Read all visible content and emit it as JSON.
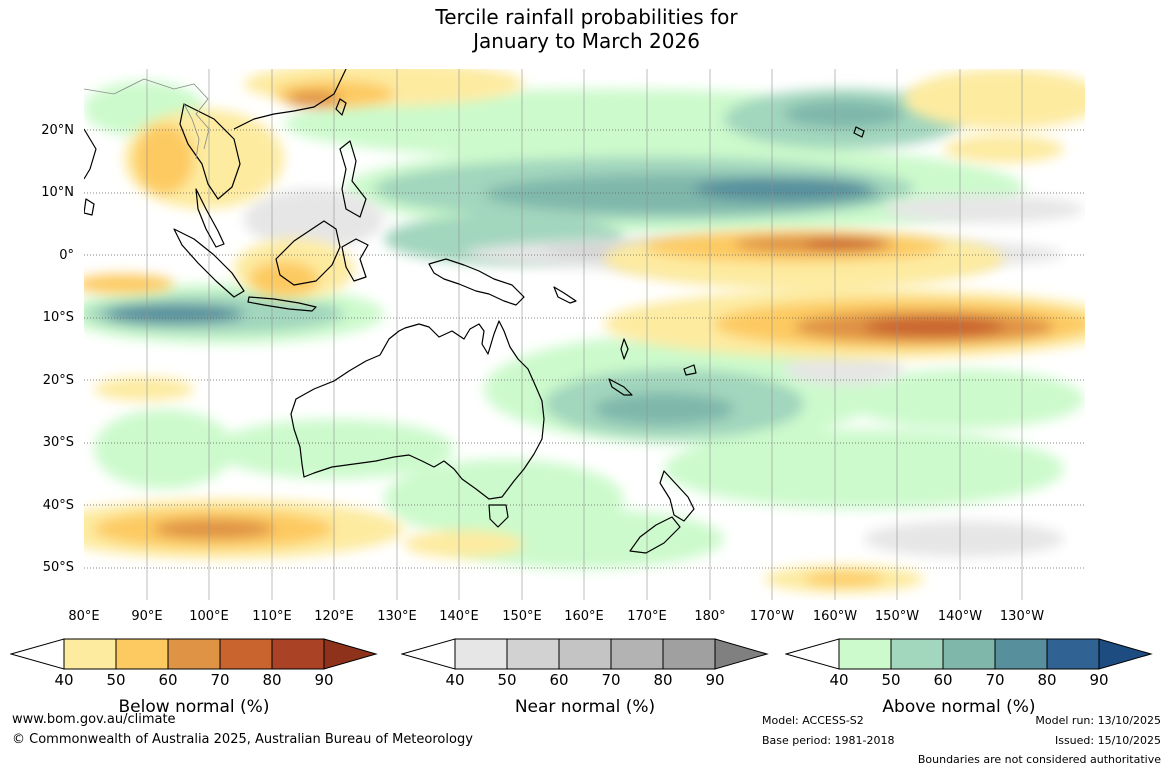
{
  "title": {
    "line1": "Tercile rainfall probabilities for",
    "line2": "January to March 2026"
  },
  "axes": {
    "lat_labels": [
      "20°N",
      "10°N",
      "0°",
      "10°S",
      "20°S",
      "30°S",
      "40°S",
      "50°S"
    ],
    "lon_labels": [
      "80°E",
      "90°E",
      "100°E",
      "110°E",
      "120°E",
      "130°E",
      "140°E",
      "150°E",
      "160°E",
      "170°E",
      "180°",
      "170°W",
      "160°W",
      "150°W",
      "140°W",
      "130°W"
    ]
  },
  "legends": [
    {
      "title": "Below normal (%)",
      "ticks": [
        "40",
        "50",
        "60",
        "70",
        "80",
        "90"
      ],
      "colors": [
        "#ffffff",
        "#fdeba0",
        "#fdca62",
        "#df9345",
        "#c9642f",
        "#aa4325",
        "#8f321c"
      ]
    },
    {
      "title": "Near normal (%)",
      "ticks": [
        "40",
        "50",
        "60",
        "70",
        "80",
        "90"
      ],
      "colors": [
        "#ffffff",
        "#e6e6e6",
        "#d2d2d2",
        "#c4c4c4",
        "#b3b3b3",
        "#a0a0a0",
        "#808080"
      ]
    },
    {
      "title": "Above normal (%)",
      "ticks": [
        "40",
        "50",
        "60",
        "70",
        "80",
        "90"
      ],
      "colors": [
        "#ffffff",
        "#ccfacc",
        "#a2d6bd",
        "#7fb7ab",
        "#578f9d",
        "#306293",
        "#1d4c80"
      ]
    }
  ],
  "footer": {
    "website": "www.bom.gov.au/climate",
    "copyright": "© Commonwealth of Australia 2025, Australian Bureau of Meteorology",
    "model": "Model: ACCESS-S2",
    "base_period": "Base period: 1981-2018",
    "model_run": "Model run: 13/10/2025",
    "issued": "Issued: 15/10/2025",
    "disclaimer": "Boundaries are not considered authoritative"
  }
}
